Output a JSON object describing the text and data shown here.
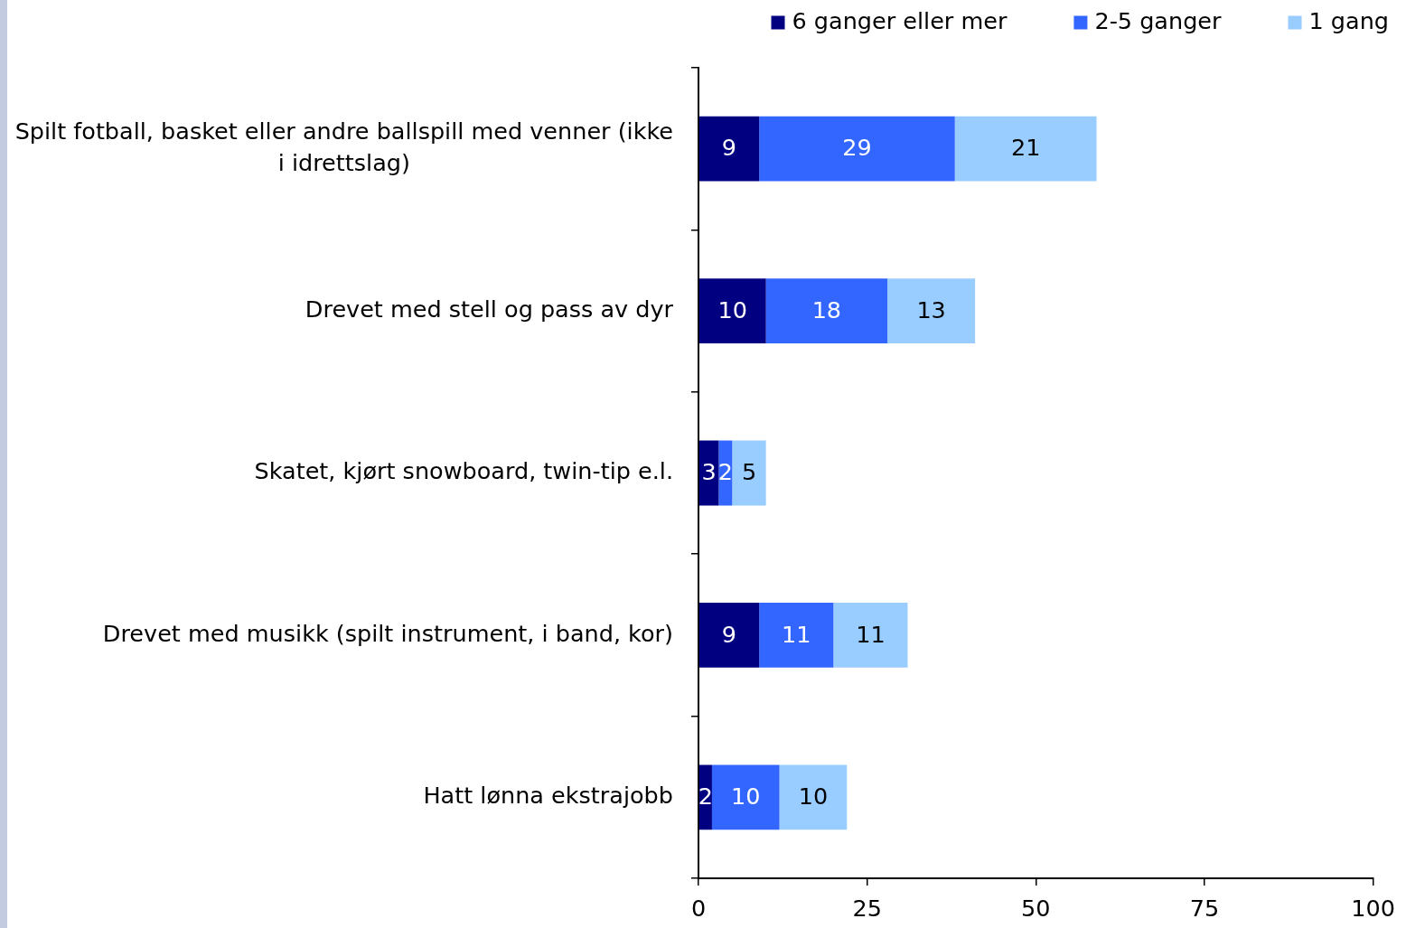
{
  "chart_data": {
    "type": "bar",
    "orientation": "horizontal",
    "stacked": true,
    "categories": [
      "Spilt fotball, basket eller andre ballspill med venner (ikke i idrettslag)",
      "Drevet med stell og pass av dyr",
      "Skatet, kjørt snowboard, twin-tip e.l.",
      "Drevet med musikk (spilt instrument, i band, kor)",
      "Hatt lønna ekstrajobb"
    ],
    "series": [
      {
        "name": "6 ganger eller mer",
        "color": "#000080",
        "values": [
          9,
          10,
          3,
          9,
          2
        ]
      },
      {
        "name": "2-5 ganger",
        "color": "#3366ff",
        "values": [
          29,
          18,
          2,
          11,
          10
        ]
      },
      {
        "name": "1 gang",
        "color": "#99ccff",
        "values": [
          21,
          13,
          5,
          11,
          10
        ]
      }
    ],
    "xlim": [
      0,
      100
    ],
    "xticks": [
      0,
      25,
      50,
      75,
      100
    ],
    "grid": false,
    "legend": "top right",
    "data_labels": true
  }
}
